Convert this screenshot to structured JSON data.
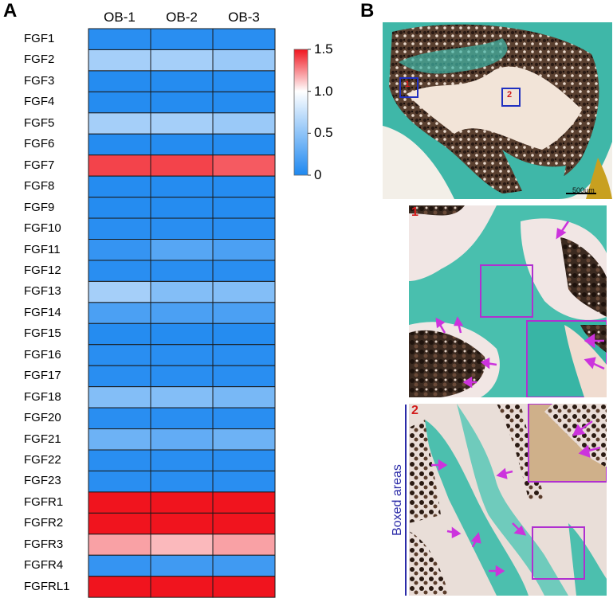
{
  "panels": {
    "a": "A",
    "b": "B"
  },
  "chart_data": {
    "type": "heatmap",
    "columns": [
      "OB-1",
      "OB-2",
      "OB-3"
    ],
    "rows": [
      "FGF1",
      "FGF2",
      "FGF3",
      "FGF4",
      "FGF5",
      "FGF6",
      "FGF7",
      "FGF8",
      "FGF9",
      "FGF10",
      "FGF11",
      "FGF12",
      "FGF13",
      "FGF14",
      "FGF15",
      "FGF16",
      "FGF17",
      "FGF18",
      "FGF20",
      "FGF21",
      "FGF22",
      "FGF23",
      "FGFR1",
      "FGFR2",
      "FGFR3",
      "FGFR4",
      "FGFRL1"
    ],
    "values": [
      [
        0.05,
        0.05,
        0.05
      ],
      [
        0.6,
        0.6,
        0.55
      ],
      [
        0.03,
        0.03,
        0.03
      ],
      [
        0.03,
        0.03,
        0.03
      ],
      [
        0.6,
        0.6,
        0.55
      ],
      [
        0.03,
        0.03,
        0.03
      ],
      [
        1.4,
        1.4,
        1.35
      ],
      [
        0.03,
        0.03,
        0.03
      ],
      [
        0.03,
        0.03,
        0.03
      ],
      [
        0.05,
        0.05,
        0.05
      ],
      [
        0.1,
        0.25,
        0.2
      ],
      [
        0.05,
        0.05,
        0.05
      ],
      [
        0.6,
        0.45,
        0.45
      ],
      [
        0.2,
        0.2,
        0.2
      ],
      [
        0.03,
        0.03,
        0.03
      ],
      [
        0.05,
        0.05,
        0.05
      ],
      [
        0.05,
        0.05,
        0.05
      ],
      [
        0.45,
        0.45,
        0.4
      ],
      [
        0.05,
        0.05,
        0.05
      ],
      [
        0.35,
        0.3,
        0.35
      ],
      [
        0.05,
        0.05,
        0.05
      ],
      [
        0.05,
        0.05,
        0.05
      ],
      [
        1.5,
        1.5,
        1.5
      ],
      [
        1.5,
        1.5,
        1.5
      ],
      [
        1.2,
        1.15,
        1.2
      ],
      [
        0.1,
        0.15,
        0.15
      ],
      [
        1.5,
        1.5,
        1.5
      ]
    ],
    "colorbar": {
      "min": 0,
      "max": 1.5,
      "ticks": [
        1.5,
        1.0,
        0.5,
        0
      ],
      "tick_labels": [
        "1.5",
        "1.0",
        "0.5",
        "0"
      ]
    },
    "colors": {
      "low": "#1e88f0",
      "mid": "#ffffff",
      "high": "#f0141e"
    }
  },
  "images": {
    "scale_bar": "500μm",
    "inset_numbers": [
      "1",
      "1",
      "2",
      "1",
      "2"
    ],
    "side_label": "Boxed areas"
  }
}
